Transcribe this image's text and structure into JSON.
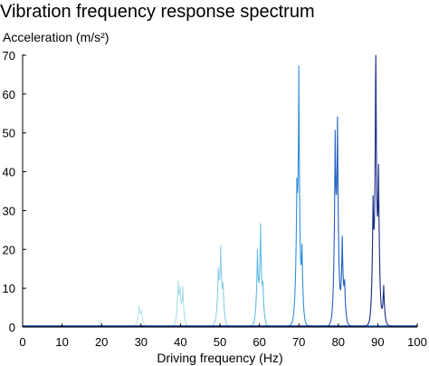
{
  "chart_data": {
    "type": "line",
    "title": "Vibration frequency response spectrum",
    "xlabel": "Driving frequency (Hz)",
    "ylabel": "Acceleration (m/s²)",
    "xlim": [
      0,
      100
    ],
    "ylim": [
      0,
      70
    ],
    "x_ticks": [
      0,
      10,
      20,
      30,
      40,
      50,
      60,
      70,
      80,
      90,
      100
    ],
    "y_ticks": [
      0,
      10,
      20,
      30,
      40,
      50,
      60,
      70
    ],
    "grid": false,
    "legend": "none",
    "series": [
      {
        "color": "#c6ebf3",
        "peaks": [
          {
            "x": 19.8,
            "y": 1.5,
            "w": 0.25
          }
        ]
      },
      {
        "color": "#b5e4ef",
        "peaks": [
          {
            "x": 29.5,
            "y": 4.5,
            "w": 0.35
          },
          {
            "x": 30.1,
            "y": 3.2,
            "w": 0.35
          }
        ]
      },
      {
        "color": "#a9dfe9",
        "peaks": [
          {
            "x": 39.4,
            "y": 10.2,
            "w": 0.3
          },
          {
            "x": 39.9,
            "y": 7.5,
            "w": 0.3
          },
          {
            "x": 40.6,
            "y": 9.3,
            "w": 0.3
          }
        ]
      },
      {
        "color": "#8cd0ea",
        "peaks": [
          {
            "x": 49.6,
            "y": 12.5,
            "w": 0.35
          },
          {
            "x": 50.2,
            "y": 17.3,
            "w": 0.3
          },
          {
            "x": 50.8,
            "y": 8.5,
            "w": 0.3
          }
        ]
      },
      {
        "color": "#63bde6",
        "peaks": [
          {
            "x": 59.5,
            "y": 18.0,
            "w": 0.3
          },
          {
            "x": 60.3,
            "y": 24.0,
            "w": 0.3
          },
          {
            "x": 60.9,
            "y": 8.0,
            "w": 0.3
          }
        ]
      },
      {
        "color": "#2f8fdc",
        "peaks": [
          {
            "x": 69.5,
            "y": 30.0,
            "w": 0.35
          },
          {
            "x": 70.0,
            "y": 58.5,
            "w": 0.25
          },
          {
            "x": 70.8,
            "y": 18.0,
            "w": 0.3
          }
        ]
      },
      {
        "color": "#1f60c4",
        "peaks": [
          {
            "x": 79.2,
            "y": 44.0,
            "w": 0.3
          },
          {
            "x": 79.8,
            "y": 47.5,
            "w": 0.3
          },
          {
            "x": 81.0,
            "y": 21.0,
            "w": 0.3
          },
          {
            "x": 81.6,
            "y": 9.0,
            "w": 0.3
          }
        ]
      },
      {
        "color": "#162a86",
        "peaks": [
          {
            "x": 88.8,
            "y": 29.0,
            "w": 0.3
          },
          {
            "x": 89.5,
            "y": 69.5,
            "w": 0.25
          },
          {
            "x": 90.2,
            "y": 37.0,
            "w": 0.3
          },
          {
            "x": 91.5,
            "y": 10.0,
            "w": 0.3
          }
        ]
      }
    ]
  }
}
